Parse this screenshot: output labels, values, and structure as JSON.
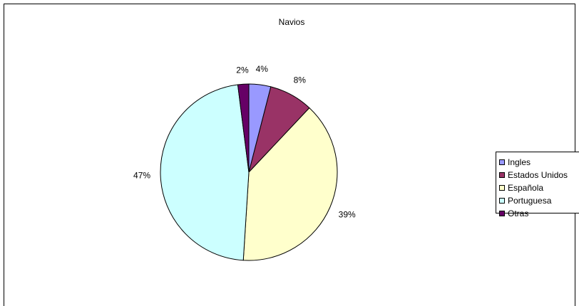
{
  "chart_data": {
    "type": "pie",
    "title": "Navios",
    "slices": [
      {
        "label": "Ingles",
        "value": 4,
        "value_label": "4%",
        "color": "#9999FF"
      },
      {
        "label": "Estados Unidos",
        "value": 8,
        "value_label": "8%",
        "color": "#993366"
      },
      {
        "label": "Española",
        "value": 39,
        "value_label": "39%",
        "color": "#FFFFCC"
      },
      {
        "label": "Portuguesa",
        "value": 47,
        "value_label": "47%",
        "color": "#CCFFFF"
      },
      {
        "label": "Otras",
        "value": 2,
        "value_label": "2%",
        "color": "#660066"
      }
    ],
    "start_angle_deg": 0,
    "direction": "clockwise",
    "legend_position": "right",
    "grid": false
  }
}
